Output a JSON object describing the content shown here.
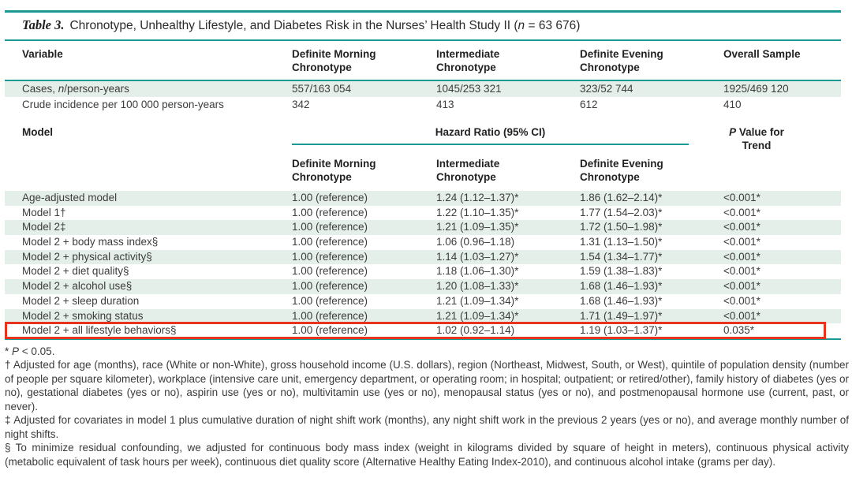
{
  "colors": {
    "rule_teal": "#1a9a93",
    "row_stripe_green": "#e4efe9",
    "highlight_red": "#e8331f"
  },
  "title": {
    "label": "Table 3.",
    "text": "Chronotype, Unhealthy Lifestyle, and Diabetes Risk in the Nurses’ Health Study II (",
    "n": "n",
    "suffix": " = 63 676)"
  },
  "columns": {
    "variable": "Variable",
    "morning": "Definite Morning Chronotype",
    "intermediate": "Intermediate Chronotype",
    "evening": "Definite Evening Chronotype",
    "overall": "Overall Sample"
  },
  "stats_rows": [
    {
      "label_prefix": "Cases, ",
      "label_italic": "n",
      "label_suffix": "/person-years",
      "values": [
        "557/163 054",
        "1045/253 321",
        "323/52 744",
        "1925/469 120"
      ]
    },
    {
      "label": "Crude incidence per 100 000 person-years",
      "values": [
        "342",
        "413",
        "612",
        "410"
      ]
    }
  ],
  "model_section": {
    "model_label": "Model",
    "hazard_header": "Hazard Ratio (95% CI)",
    "p_header_italic": "P",
    "p_header_rest": " Value for Trend",
    "sub_morning": "Definite Morning Chronotype",
    "sub_intermediate": "Intermediate Chronotype",
    "sub_evening": "Definite Evening Chronotype"
  },
  "model_rows": [
    {
      "label": "Age-adjusted model",
      "values": [
        "1.00 (reference)",
        "1.24 (1.12–1.37)*",
        "1.86 (1.62–2.14)*",
        "<0.001*"
      ]
    },
    {
      "label": "Model 1†",
      "values": [
        "1.00 (reference)",
        "1.22 (1.10–1.35)*",
        "1.77 (1.54–2.03)*",
        "<0.001*"
      ]
    },
    {
      "label": "Model 2‡",
      "values": [
        "1.00 (reference)",
        "1.21 (1.09–1.35)*",
        "1.72 (1.50–1.98)*",
        "<0.001*"
      ]
    },
    {
      "label": "Model 2 + body mass index§",
      "values": [
        "1.00 (reference)",
        "1.06 (0.96–1.18)",
        "1.31 (1.13–1.50)*",
        "<0.001*"
      ]
    },
    {
      "label": "Model 2 + physical activity§",
      "values": [
        "1.00 (reference)",
        "1.14 (1.03–1.27)*",
        "1.54 (1.34–1.77)*",
        "<0.001*"
      ]
    },
    {
      "label": "Model 2 + diet quality§",
      "values": [
        "1.00 (reference)",
        "1.18 (1.06–1.30)*",
        "1.59 (1.38–1.83)*",
        "<0.001*"
      ]
    },
    {
      "label": "Model 2 + alcohol use§",
      "values": [
        "1.00 (reference)",
        "1.20 (1.08–1.33)*",
        "1.68 (1.46–1.93)*",
        "<0.001*"
      ]
    },
    {
      "label": "Model 2 + sleep duration",
      "values": [
        "1.00 (reference)",
        "1.21 (1.09–1.34)*",
        "1.68 (1.46–1.93)*",
        "<0.001*"
      ]
    },
    {
      "label": "Model 2 + smoking status",
      "values": [
        "1.00 (reference)",
        "1.21 (1.09–1.34)*",
        "1.71 (1.49–1.97)*",
        "<0.001*"
      ]
    },
    {
      "label": "Model 2 + all lifestyle behaviors§",
      "values": [
        "1.00 (reference)",
        "1.02 (0.92–1.14)",
        "1.19 (1.03–1.37)*",
        "0.035*"
      ]
    }
  ],
  "footnotes": {
    "sig_prefix": "* ",
    "sig_italic": "P",
    "sig_suffix": " < 0.05.",
    "dagger": "† Adjusted for age (months), race (White or non-White), gross household income (U.S. dollars), region (Northeast, Midwest, South, or West), quintile of population density (number of people per square kilometer), workplace (intensive care unit, emergency department, or operating room; in hospital; outpatient; or retired/other), family history of diabetes (yes or no), gestational diabetes (yes or no), aspirin use (yes or no), multivitamin use (yes or no), menopausal status (yes or no), and postmenopausal hormone use (current, past, or never).",
    "double_dagger": "‡ Adjusted for covariates in model 1 plus cumulative duration of night shift work (months), any night shift work in the previous 2 years (yes or no), and average monthly number of night shifts.",
    "section": "§ To minimize residual confounding, we adjusted for continuous body mass index (weight in kilograms divided by square of height in meters), continuous physical activity (metabolic equivalent of task hours per week), continuous diet quality score (Alternative Healthy Eating Index-2010), and continuous alcohol intake (grams per day)."
  }
}
